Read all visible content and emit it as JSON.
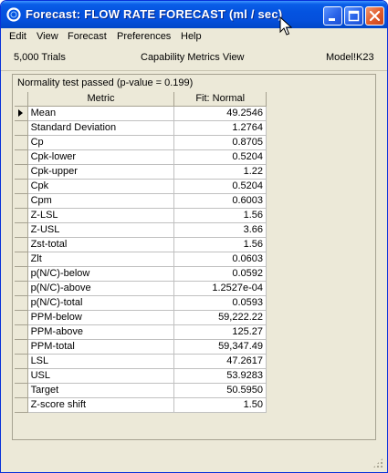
{
  "window": {
    "title": "Forecast: FLOW RATE FORECAST (ml / sec)"
  },
  "menu": [
    "Edit",
    "View",
    "Forecast",
    "Preferences",
    "Help"
  ],
  "info": {
    "trials": "5,000 Trials",
    "view": "Capability Metrics View",
    "cell": "Model!K23"
  },
  "panel": {
    "status": "Normality test passed (p-value = 0.199)",
    "headers": {
      "metric": "Metric",
      "value": "Fit: Normal"
    },
    "rows": [
      {
        "metric": "Mean",
        "value": "49.2546"
      },
      {
        "metric": "Standard Deviation",
        "value": "1.2764"
      },
      {
        "metric": "Cp",
        "value": "0.8705"
      },
      {
        "metric": "Cpk-lower",
        "value": "0.5204"
      },
      {
        "metric": "Cpk-upper",
        "value": "1.22"
      },
      {
        "metric": "Cpk",
        "value": "0.5204"
      },
      {
        "metric": "Cpm",
        "value": "0.6003"
      },
      {
        "metric": "Z-LSL",
        "value": "1.56"
      },
      {
        "metric": "Z-USL",
        "value": "3.66"
      },
      {
        "metric": "Zst-total",
        "value": "1.56"
      },
      {
        "metric": "Zlt",
        "value": "0.0603"
      },
      {
        "metric": "p(N/C)-below",
        "value": "0.0592"
      },
      {
        "metric": "p(N/C)-above",
        "value": "1.2527e-04"
      },
      {
        "metric": "p(N/C)-total",
        "value": "0.0593"
      },
      {
        "metric": "PPM-below",
        "value": "59,222.22"
      },
      {
        "metric": "PPM-above",
        "value": "125.27"
      },
      {
        "metric": "PPM-total",
        "value": "59,347.49"
      },
      {
        "metric": "LSL",
        "value": "47.2617"
      },
      {
        "metric": "USL",
        "value": "53.9283"
      },
      {
        "metric": "Target",
        "value": "50.5950"
      },
      {
        "metric": "Z-score shift",
        "value": "1.50"
      }
    ]
  },
  "colors": {
    "titlebar": "#0453e0",
    "window_bg": "#ece9d8",
    "close_button": "#e05a2a"
  },
  "icons": [
    "app-icon",
    "minimize-icon",
    "maximize-icon",
    "close-icon",
    "row-pointer-icon",
    "resize-grip-icon",
    "mouse-cursor-icon"
  ]
}
